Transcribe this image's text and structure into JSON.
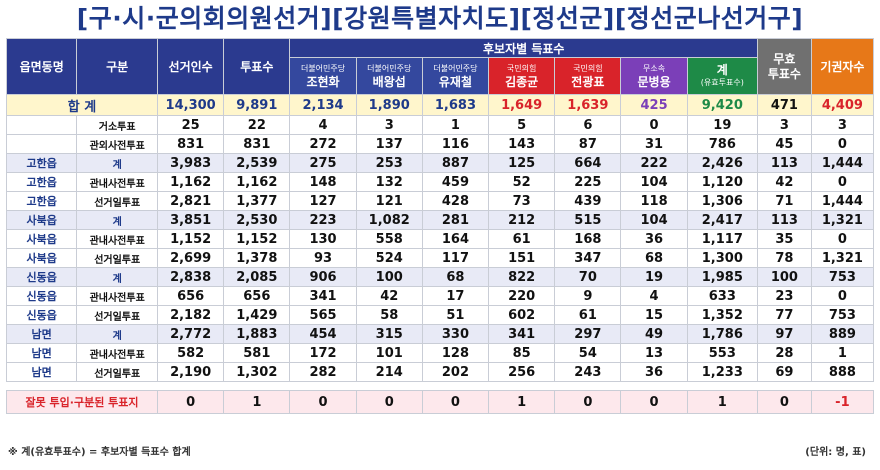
{
  "title": "[구·시·군의회의원선거][강원특별자치도][정선군][정선군나선거구]",
  "header": {
    "col_district": "읍면동명",
    "col_type": "구분",
    "col_voters": "선거인수",
    "col_ballots": "투표수",
    "group_label": "후보자별 득표수",
    "candidates": [
      {
        "party": "더불어민주당",
        "name": "조현화"
      },
      {
        "party": "더불어민주당",
        "name": "배왕섭"
      },
      {
        "party": "더불어민주당",
        "name": "유재철"
      },
      {
        "party": "국민의힘",
        "name": "김종균"
      },
      {
        "party": "국민의힘",
        "name": "전광표"
      },
      {
        "party": "무소속",
        "name": "문병용"
      }
    ],
    "sum_label": "계",
    "sum_sub": "(유효투표수)",
    "invalid_label": "무효\n투표수",
    "abstain_label": "기권자수"
  },
  "total": {
    "label": "합 계",
    "voters": "14,300",
    "ballots": "9,891",
    "votes": [
      "2,134",
      "1,890",
      "1,683",
      "1,649",
      "1,639",
      "425"
    ],
    "sum": "9,420",
    "invalid": "471",
    "abstain": "4,409"
  },
  "rows": [
    {
      "district": "",
      "type": "거소투표",
      "voters": "25",
      "ballots": "22",
      "votes": [
        "4",
        "3",
        "1",
        "5",
        "6",
        "0"
      ],
      "sum": "19",
      "invalid": "3",
      "abstain": "3"
    },
    {
      "district": "",
      "type": "관외사전투표",
      "voters": "831",
      "ballots": "831",
      "votes": [
        "272",
        "137",
        "116",
        "143",
        "87",
        "31"
      ],
      "sum": "786",
      "invalid": "45",
      "abstain": "0"
    },
    {
      "district": "고한읍",
      "type": "계",
      "voters": "3,983",
      "ballots": "2,539",
      "votes": [
        "275",
        "253",
        "887",
        "125",
        "664",
        "222"
      ],
      "sum": "2,426",
      "invalid": "113",
      "abstain": "1,444",
      "subtotal": true
    },
    {
      "district": "고한읍",
      "type": "관내사전투표",
      "voters": "1,162",
      "ballots": "1,162",
      "votes": [
        "148",
        "132",
        "459",
        "52",
        "225",
        "104"
      ],
      "sum": "1,120",
      "invalid": "42",
      "abstain": "0"
    },
    {
      "district": "고한읍",
      "type": "선거일투표",
      "voters": "2,821",
      "ballots": "1,377",
      "votes": [
        "127",
        "121",
        "428",
        "73",
        "439",
        "118"
      ],
      "sum": "1,306",
      "invalid": "71",
      "abstain": "1,444"
    },
    {
      "district": "사북읍",
      "type": "계",
      "voters": "3,851",
      "ballots": "2,530",
      "votes": [
        "223",
        "1,082",
        "281",
        "212",
        "515",
        "104"
      ],
      "sum": "2,417",
      "invalid": "113",
      "abstain": "1,321",
      "subtotal": true
    },
    {
      "district": "사북읍",
      "type": "관내사전투표",
      "voters": "1,152",
      "ballots": "1,152",
      "votes": [
        "130",
        "558",
        "164",
        "61",
        "168",
        "36"
      ],
      "sum": "1,117",
      "invalid": "35",
      "abstain": "0"
    },
    {
      "district": "사북읍",
      "type": "선거일투표",
      "voters": "2,699",
      "ballots": "1,378",
      "votes": [
        "93",
        "524",
        "117",
        "151",
        "347",
        "68"
      ],
      "sum": "1,300",
      "invalid": "78",
      "abstain": "1,321"
    },
    {
      "district": "신동읍",
      "type": "계",
      "voters": "2,838",
      "ballots": "2,085",
      "votes": [
        "906",
        "100",
        "68",
        "822",
        "70",
        "19"
      ],
      "sum": "1,985",
      "invalid": "100",
      "abstain": "753",
      "subtotal": true
    },
    {
      "district": "신동읍",
      "type": "관내사전투표",
      "voters": "656",
      "ballots": "656",
      "votes": [
        "341",
        "42",
        "17",
        "220",
        "9",
        "4"
      ],
      "sum": "633",
      "invalid": "23",
      "abstain": "0"
    },
    {
      "district": "신동읍",
      "type": "선거일투표",
      "voters": "2,182",
      "ballots": "1,429",
      "votes": [
        "565",
        "58",
        "51",
        "602",
        "61",
        "15"
      ],
      "sum": "1,352",
      "invalid": "77",
      "abstain": "753"
    },
    {
      "district": "남면",
      "type": "계",
      "voters": "2,772",
      "ballots": "1,883",
      "votes": [
        "454",
        "315",
        "330",
        "341",
        "297",
        "49"
      ],
      "sum": "1,786",
      "invalid": "97",
      "abstain": "889",
      "subtotal": true
    },
    {
      "district": "남면",
      "type": "관내사전투표",
      "voters": "582",
      "ballots": "581",
      "votes": [
        "172",
        "101",
        "128",
        "85",
        "54",
        "13"
      ],
      "sum": "553",
      "invalid": "28",
      "abstain": "1"
    },
    {
      "district": "남면",
      "type": "선거일투표",
      "voters": "2,190",
      "ballots": "1,302",
      "votes": [
        "282",
        "214",
        "202",
        "256",
        "243",
        "36"
      ],
      "sum": "1,233",
      "invalid": "69",
      "abstain": "888"
    }
  ],
  "error_row": {
    "label": "잘못 투입·구분된 투표지",
    "voters": "0",
    "ballots": "1",
    "votes": [
      "0",
      "0",
      "0",
      "1",
      "0",
      "0"
    ],
    "sum": "1",
    "invalid": "0",
    "abstain": "-1"
  },
  "footnote_left": "※ 계(유효투표수) = 후보자별 득표수 합계",
  "footnote_right": "(단위: 명, 표)",
  "colors": {
    "header_blue": "#2b3a8f",
    "democratic": "#34489e",
    "ppp": "#d9232a",
    "independent": "#7b3fb8",
    "sum": "#1e8a47",
    "invalid": "#707070",
    "abstain": "#e77818",
    "total_bg": "#fff6cc",
    "error_bg": "#fde8ec"
  }
}
